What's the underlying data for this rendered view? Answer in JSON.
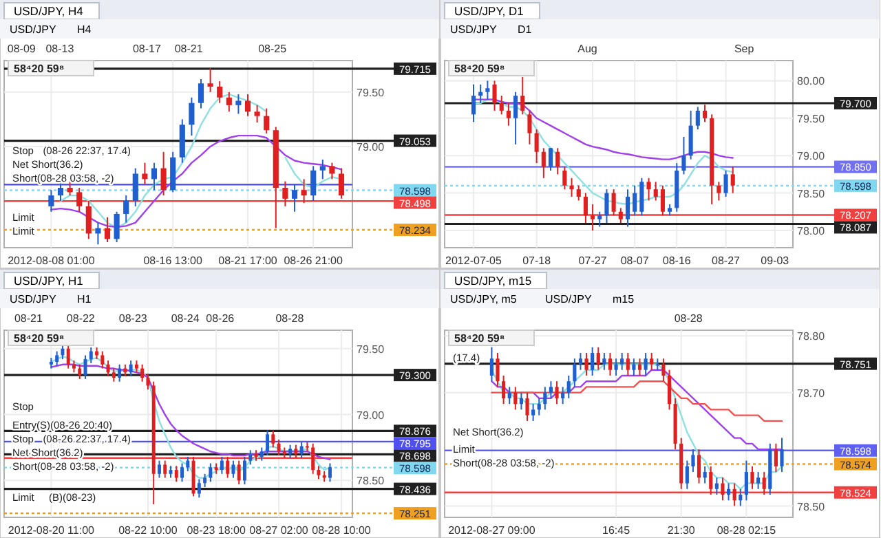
{
  "chart_data": [
    {
      "type": "candlestick",
      "title": "USD/JPY, H4",
      "subtitle": "58⁴20  59⁸",
      "colors": [
        "#1f5fd0",
        "#1f5fd0",
        "#e02020",
        "#e02020",
        "#e02020",
        "#1f5fd0",
        "#e02020",
        "#1f5fd0",
        "#1f5fd0",
        "#1f5fd0",
        "#e02020",
        "#1f5fd0",
        "#e02020",
        "#1f5fd0",
        "#1f5fd0",
        "#1f5fd0",
        "#1f5fd0",
        "#e02020",
        "#e02020",
        "#e02020",
        "#1f5fd0",
        "#e02020",
        "#e02020",
        "#e02020",
        "#e02020",
        "#e02020",
        "#1f5fd0",
        "#e02020",
        "#1f5fd0",
        "#1f5fd0",
        "#e02020",
        "#e02020"
      ],
      "grid": true,
      "categories": [
        "2012-08-08 01:00",
        null,
        null,
        null,
        null,
        null,
        null,
        null,
        null,
        null,
        null,
        null,
        null,
        "08-16 13:00",
        null,
        null,
        null,
        null,
        null,
        null,
        null,
        "08-21 17:00",
        null,
        null,
        null,
        null,
        null,
        null,
        "08-26 21:00",
        null,
        null,
        null
      ],
      "ohlc": [
        [
          78.45,
          78.6,
          78.4,
          78.55
        ],
        [
          78.55,
          78.68,
          78.5,
          78.62
        ],
        [
          78.62,
          78.7,
          78.55,
          78.58
        ],
        [
          78.58,
          78.62,
          78.4,
          78.45
        ],
        [
          78.45,
          78.5,
          78.15,
          78.2
        ],
        [
          78.2,
          78.3,
          78.1,
          78.25
        ],
        [
          78.25,
          78.35,
          78.12,
          78.15
        ],
        [
          78.15,
          78.4,
          78.12,
          78.38
        ],
        [
          78.38,
          78.55,
          78.3,
          78.5
        ],
        [
          78.5,
          78.8,
          78.45,
          78.75
        ],
        [
          78.75,
          78.85,
          78.65,
          78.7
        ],
        [
          78.7,
          78.85,
          78.6,
          78.8
        ],
        [
          78.8,
          78.95,
          78.55,
          78.6
        ],
        [
          78.6,
          78.95,
          78.58,
          78.9
        ],
        [
          78.9,
          79.25,
          78.85,
          79.2
        ],
        [
          79.2,
          79.45,
          79.1,
          79.4
        ],
        [
          79.4,
          79.62,
          79.35,
          79.58
        ],
        [
          79.58,
          79.72,
          79.5,
          79.55
        ],
        [
          79.55,
          79.6,
          79.4,
          79.45
        ],
        [
          79.45,
          79.5,
          79.32,
          79.38
        ],
        [
          79.38,
          79.48,
          79.3,
          79.42
        ],
        [
          79.42,
          79.48,
          79.28,
          79.32
        ],
        [
          79.32,
          79.38,
          79.22,
          79.28
        ],
        [
          79.28,
          79.35,
          79.12,
          79.15
        ],
        [
          79.15,
          79.18,
          78.25,
          78.62
        ],
        [
          78.62,
          78.68,
          78.45,
          78.52
        ],
        [
          78.52,
          78.65,
          78.4,
          78.6
        ],
        [
          78.6,
          78.7,
          78.48,
          78.55
        ],
        [
          78.55,
          78.82,
          78.5,
          78.78
        ],
        [
          78.78,
          78.88,
          78.7,
          78.82
        ],
        [
          78.82,
          78.85,
          78.7,
          78.75
        ],
        [
          78.75,
          78.8,
          78.52,
          78.55
        ]
      ],
      "series": [
        {
          "type": "line",
          "color": "#8fe0e0",
          "values": [
            null,
            78.5,
            78.55,
            78.55,
            78.5,
            78.4,
            78.3,
            78.25,
            78.3,
            78.4,
            78.55,
            78.65,
            78.7,
            78.72,
            78.85,
            79.0,
            79.2,
            79.35,
            79.45,
            79.48,
            79.45,
            79.42,
            79.38,
            79.32,
            null,
            78.9,
            78.75,
            78.65,
            78.62,
            78.68,
            78.72,
            78.7
          ]
        },
        {
          "type": "line",
          "color": "#a040e8",
          "values": [
            78.42,
            78.43,
            78.42,
            78.4,
            78.35,
            78.3,
            78.27,
            78.26,
            78.27,
            78.3,
            78.4,
            78.5,
            78.6,
            78.68,
            78.75,
            78.85,
            78.92,
            79.0,
            79.05,
            79.08,
            79.1,
            79.1,
            79.1,
            79.08,
            79.0,
            78.92,
            78.87,
            78.85,
            78.84,
            78.83,
            78.81,
            78.79
          ]
        }
      ],
      "ylim": [
        78.07,
        79.79
      ],
      "yticks": [
        {
          "value": 79.5,
          "label": "79.50"
        },
        {
          "value": 79.0,
          "label": "79.00"
        }
      ],
      "ref_lines": [
        {
          "axis": "y",
          "value": 79.715,
          "label": "79.715",
          "color": "#202020"
        },
        {
          "axis": "y",
          "value": 79.053,
          "label": "79.053",
          "color": "#202020"
        },
        {
          "axis": "y",
          "value": 78.65,
          "label": null,
          "color": "#5050f0"
        },
        {
          "axis": "y",
          "value": 78.598,
          "label": "78.598",
          "color": "#7fd8f0",
          "line_style": "dotted"
        },
        {
          "axis": "y",
          "value": 78.498,
          "label": "78.498",
          "color": "#f04040"
        },
        {
          "axis": "y",
          "value": 78.234,
          "label": "78.234",
          "color": "#f0a020",
          "line_style": "dotted"
        }
      ],
      "annotations": [
        "08-09",
        "08-13",
        "08-17",
        "08-21",
        "08-25",
        "USD/JPY",
        "H4",
        "Stop",
        "(08-26 22:37, 17.4)",
        "Net Short(36.2)",
        "Short(08-28 03:58, -2)",
        "Limit",
        "Limit"
      ]
    },
    {
      "type": "candlestick",
      "title": "USD/JPY, D1",
      "subtitle": "58⁴20  59⁸",
      "colors": [
        "#1f5fd0",
        "#1f5fd0",
        "#1f5fd0",
        "#e02020",
        "#e02020",
        "#e02020",
        "#1f5fd0",
        "#e02020",
        "#e02020",
        "#e02020",
        "#e02020",
        "#1f5fd0",
        "#e02020",
        "#e02020",
        "#e02020",
        "#e02020",
        "#e02020",
        "#e02020",
        "#1f5fd0",
        "#1f5fd0",
        "#e02020",
        "#e02020",
        "#1f5fd0",
        "#1f5fd0",
        "#1f5fd0",
        "#e02020",
        "#e02020",
        "#e02020",
        "#1f5fd0",
        "#1f5fd0",
        "#1f5fd0",
        "#1f5fd0",
        "#1f5fd0",
        "#e02020",
        "#e02020",
        "#e02020",
        "#1f5fd0",
        "#e02020",
        null,
        null,
        null,
        null,
        null,
        null,
        null
      ],
      "grid": true,
      "categories": [
        "2012-07-05",
        null,
        null,
        null,
        null,
        null,
        null,
        null,
        null,
        "07-18",
        null,
        null,
        null,
        null,
        null,
        null,
        null,
        "07-27",
        null,
        null,
        null,
        null,
        null,
        "08-07",
        null,
        null,
        null,
        null,
        null,
        "08-16",
        null,
        null,
        null,
        null,
        null,
        null,
        "08-27",
        null,
        null,
        null,
        null,
        null,
        null,
        "09-03",
        null
      ],
      "ohlc": [
        [
          79.55,
          79.95,
          79.45,
          79.8
        ],
        [
          79.8,
          79.95,
          79.7,
          79.85
        ],
        [
          79.85,
          80.0,
          79.75,
          79.9
        ],
        [
          79.95,
          80.0,
          79.6,
          79.7
        ],
        [
          79.7,
          79.8,
          79.55,
          79.6
        ],
        [
          79.6,
          79.7,
          79.4,
          79.5
        ],
        [
          79.5,
          79.85,
          79.15,
          79.8
        ],
        [
          79.8,
          80.05,
          79.55,
          79.6
        ],
        [
          79.55,
          79.6,
          79.15,
          79.3
        ],
        [
          79.3,
          79.35,
          78.9,
          79.05
        ],
        [
          79.05,
          79.1,
          78.7,
          78.85
        ],
        [
          78.85,
          79.1,
          78.8,
          79.1
        ],
        [
          79.05,
          79.1,
          78.75,
          78.85
        ],
        [
          78.8,
          78.85,
          78.55,
          78.6
        ],
        [
          78.6,
          78.7,
          78.45,
          78.55
        ],
        [
          78.55,
          78.6,
          78.4,
          78.45
        ],
        [
          78.45,
          78.5,
          78.1,
          78.2
        ],
        [
          78.2,
          78.35,
          78.0,
          78.15
        ],
        [
          78.15,
          78.25,
          78.05,
          78.2
        ],
        [
          78.2,
          78.55,
          78.1,
          78.5
        ],
        [
          78.5,
          78.55,
          78.2,
          78.25
        ],
        [
          78.25,
          78.3,
          78.1,
          78.15
        ],
        [
          78.15,
          78.55,
          78.05,
          78.45
        ],
        [
          78.25,
          78.6,
          78.2,
          78.5
        ],
        [
          78.25,
          78.7,
          78.2,
          78.65
        ],
        [
          78.65,
          78.7,
          78.4,
          78.55
        ],
        [
          78.55,
          78.65,
          78.4,
          78.45
        ],
        [
          78.55,
          78.6,
          78.2,
          78.25
        ],
        [
          78.25,
          78.35,
          78.2,
          78.3
        ],
        [
          78.3,
          78.9,
          78.25,
          78.8
        ],
        [
          78.8,
          79.25,
          78.75,
          79.0
        ],
        [
          79.0,
          79.6,
          78.95,
          79.4
        ],
        [
          79.4,
          79.65,
          79.35,
          79.6
        ],
        [
          79.6,
          79.68,
          79.45,
          79.5
        ],
        [
          79.5,
          79.55,
          78.35,
          78.6
        ],
        [
          78.6,
          78.65,
          78.4,
          78.5
        ],
        [
          78.5,
          78.8,
          78.45,
          78.75
        ],
        [
          78.75,
          78.85,
          78.5,
          78.6
        ],
        null,
        null,
        null,
        null,
        null,
        null,
        null
      ],
      "series": [
        {
          "type": "line",
          "color": "#8fe0e0",
          "values": [
            79.7,
            79.7,
            79.75,
            79.75,
            79.7,
            79.65,
            79.65,
            79.6,
            79.5,
            79.35,
            79.2,
            79.1,
            79.0,
            78.9,
            78.8,
            78.7,
            78.6,
            78.5,
            78.45,
            78.4,
            78.38,
            78.36,
            78.35,
            78.38,
            78.4,
            78.42,
            78.45,
            78.45,
            78.45,
            78.5,
            78.6,
            78.75,
            78.9,
            79.0,
            78.95,
            78.85,
            78.8,
            78.78,
            null,
            null,
            null,
            null,
            null,
            null,
            null
          ]
        },
        {
          "type": "line",
          "color": "#a040e8",
          "values": [
            79.75,
            79.75,
            79.75,
            79.75,
            79.72,
            79.7,
            79.7,
            79.68,
            79.6,
            79.5,
            79.45,
            79.4,
            79.35,
            79.3,
            79.25,
            79.2,
            79.15,
            79.12,
            79.1,
            79.08,
            79.05,
            79.03,
            79.02,
            79.0,
            78.98,
            78.97,
            78.96,
            78.95,
            78.95,
            78.97,
            79.0,
            79.03,
            79.05,
            79.05,
            79.03,
            79.0,
            78.98,
            78.97,
            null,
            null,
            null,
            null,
            null,
            null,
            null
          ]
        }
      ],
      "ylim": [
        77.77,
        80.27
      ],
      "yticks": [
        {
          "value": 80.0,
          "label": "80.00"
        },
        {
          "value": 79.5,
          "label": "79.50"
        },
        {
          "value": 79.0,
          "label": "79.00"
        },
        {
          "value": 78.5,
          "label": "78.50"
        },
        {
          "value": 78.0,
          "label": "78.00"
        }
      ],
      "ref_lines": [
        {
          "axis": "y",
          "value": 79.7,
          "label": "79.700",
          "color": "#202020"
        },
        {
          "axis": "y",
          "value": 78.85,
          "label": "78.850",
          "color": "#7070f0"
        },
        {
          "axis": "y",
          "value": 78.598,
          "label": "78.598",
          "color": "#7fd8f0",
          "line_style": "dotted"
        },
        {
          "axis": "y",
          "value": 78.207,
          "label": "78.207",
          "color": "#f04040"
        },
        {
          "axis": "y",
          "value": 78.087,
          "label": "78.087",
          "color": "#202020"
        }
      ],
      "annotations": [
        "Aug",
        "Sep",
        "USD/JPY",
        "D1"
      ]
    },
    {
      "type": "candlestick",
      "title": "USD/JPY, H1",
      "subtitle": "58⁴20  59⁸",
      "colors": [
        "#1f5fd0",
        "#1f5fd0",
        "#1f5fd0",
        "#e02020",
        "#e02020",
        "#e02020",
        "#1f5fd0",
        "#1f5fd0",
        "#e02020",
        "#e02020",
        "#e02020",
        "#e02020",
        "#1f5fd0",
        "#e02020",
        "#1f5fd0",
        "#e02020",
        "#e02020",
        "#e02020",
        "#e02020",
        "#1f5fd0",
        "#e02020",
        "#1f5fd0",
        "#e02020",
        "#1f5fd0",
        "#1f5fd0",
        "#e02020",
        "#1f5fd0",
        "#1f5fd0",
        "#1f5fd0",
        "#e02020",
        "#1f5fd0",
        "#e02020",
        "#1f5fd0",
        "#e02020",
        "#1f5fd0",
        "#1f5fd0",
        "#e02020",
        "#1f5fd0",
        "#1f5fd0",
        "#e02020",
        "#e02020",
        "#e02020",
        "#1f5fd0",
        "#e02020",
        "#1f5fd0",
        "#e02020",
        "#e02020",
        "#e02020",
        "#e02020",
        "#1f5fd0",
        null,
        null
      ],
      "grid": true,
      "categories": [
        "2012-08-20 11:00",
        null,
        null,
        null,
        null,
        null,
        null,
        null,
        null,
        null,
        null,
        null,
        null,
        null,
        null,
        null,
        null,
        "08-22 10:00",
        null,
        null,
        null,
        null,
        null,
        null,
        null,
        null,
        null,
        null,
        null,
        "08-23 18:00",
        null,
        null,
        null,
        null,
        null,
        null,
        null,
        null,
        null,
        null,
        "08-27 02:00",
        null,
        null,
        null,
        null,
        null,
        null,
        null,
        null,
        null,
        null,
        "08-28 10:00"
      ],
      "ohlc": [
        [
          79.38,
          79.43,
          79.35,
          79.4
        ],
        [
          79.4,
          79.48,
          79.37,
          79.45
        ],
        [
          79.45,
          79.53,
          79.42,
          79.5
        ],
        [
          79.5,
          79.53,
          79.35,
          79.38
        ],
        [
          79.38,
          79.41,
          79.32,
          79.35
        ],
        [
          79.35,
          79.38,
          79.27,
          79.3
        ],
        [
          79.3,
          79.45,
          79.27,
          79.42
        ],
        [
          79.42,
          79.51,
          79.39,
          79.48
        ],
        [
          79.48,
          79.51,
          79.42,
          79.45
        ],
        [
          79.45,
          79.48,
          79.35,
          79.38
        ],
        [
          79.38,
          79.41,
          79.29,
          79.32
        ],
        [
          79.32,
          79.35,
          79.25,
          79.28
        ],
        [
          79.28,
          79.38,
          79.25,
          79.35
        ],
        [
          79.35,
          79.38,
          79.29,
          79.32
        ],
        [
          79.32,
          79.41,
          79.29,
          79.38
        ],
        [
          79.38,
          79.41,
          79.32,
          79.35
        ],
        [
          79.35,
          79.38,
          79.25,
          79.28
        ],
        [
          79.28,
          79.31,
          79.19,
          79.22
        ],
        [
          79.22,
          79.25,
          78.32,
          78.55
        ],
        [
          78.55,
          78.65,
          78.52,
          78.62
        ],
        [
          78.62,
          78.65,
          78.52,
          78.55
        ],
        [
          78.55,
          78.61,
          78.52,
          78.58
        ],
        [
          78.58,
          78.61,
          78.49,
          78.52
        ],
        [
          78.52,
          78.63,
          78.49,
          78.6
        ],
        [
          78.6,
          78.68,
          78.57,
          78.65
        ],
        [
          78.65,
          78.68,
          78.38,
          78.4
        ],
        [
          78.4,
          78.51,
          78.37,
          78.48
        ],
        [
          78.48,
          78.55,
          78.45,
          78.52
        ],
        [
          78.52,
          78.63,
          78.49,
          78.6
        ],
        [
          78.6,
          78.63,
          78.55,
          78.58
        ],
        [
          78.58,
          78.68,
          78.55,
          78.65
        ],
        [
          78.65,
          78.68,
          78.52,
          78.55
        ],
        [
          78.55,
          78.65,
          78.52,
          78.62
        ],
        [
          78.62,
          78.65,
          78.47,
          78.5
        ],
        [
          78.5,
          78.68,
          78.47,
          78.65
        ],
        [
          78.65,
          78.73,
          78.62,
          78.7
        ],
        [
          78.7,
          78.73,
          78.65,
          78.68
        ],
        [
          78.68,
          78.75,
          78.65,
          78.72
        ],
        [
          78.72,
          78.88,
          78.69,
          78.85
        ],
        [
          78.85,
          78.88,
          78.75,
          78.78
        ],
        [
          78.78,
          78.81,
          78.69,
          78.72
        ],
        [
          78.72,
          78.75,
          78.67,
          78.7
        ],
        [
          78.7,
          78.77,
          78.67,
          78.74
        ],
        [
          78.74,
          78.77,
          78.67,
          78.7
        ],
        [
          78.7,
          78.79,
          78.67,
          78.76
        ],
        [
          78.76,
          78.79,
          78.72,
          78.75
        ],
        [
          78.75,
          78.78,
          78.55,
          78.58
        ],
        [
          78.58,
          78.61,
          78.51,
          78.54
        ],
        [
          78.54,
          78.57,
          78.49,
          78.52
        ],
        [
          78.52,
          78.63,
          78.49,
          78.6
        ],
        null,
        null
      ],
      "series": [
        {
          "type": "line",
          "color": "#8fe0e0",
          "values": [
            79.4,
            79.42,
            79.44,
            79.43,
            79.4,
            79.38,
            79.4,
            79.42,
            79.43,
            79.4,
            79.36,
            79.33,
            79.33,
            79.33,
            79.34,
            79.34,
            79.32,
            79.28,
            79.1,
            78.95,
            78.85,
            78.75,
            78.68,
            78.64,
            78.62,
            78.55,
            78.52,
            78.52,
            78.55,
            78.57,
            78.6,
            78.58,
            78.6,
            78.57,
            78.6,
            78.65,
            78.67,
            78.69,
            78.75,
            78.76,
            78.74,
            78.72,
            78.73,
            78.72,
            78.73,
            78.74,
            78.68,
            78.62,
            78.58,
            78.6,
            null,
            null
          ]
        },
        {
          "type": "line",
          "color": "#a040e8",
          "values": [
            79.36,
            79.37,
            79.38,
            79.38,
            79.38,
            79.37,
            79.37,
            79.37,
            79.37,
            79.36,
            79.35,
            79.35,
            79.34,
            79.34,
            79.33,
            79.32,
            79.31,
            79.28,
            79.18,
            79.08,
            79.0,
            78.93,
            78.88,
            78.84,
            78.81,
            78.78,
            78.76,
            78.74,
            78.72,
            78.71,
            78.7,
            78.7,
            78.69,
            78.69,
            78.69,
            78.7,
            78.7,
            78.71,
            78.72,
            78.72,
            78.72,
            78.72,
            78.72,
            78.72,
            78.72,
            78.72,
            78.7,
            78.68,
            78.67,
            78.66,
            null,
            null
          ]
        }
      ],
      "ylim": [
        78.22,
        79.64
      ],
      "yticks": [
        {
          "value": 79.5,
          "label": "79.50"
        },
        {
          "value": 79.0,
          "label": "79.00"
        },
        {
          "value": 78.5,
          "label": "78.50"
        }
      ],
      "ref_lines": [
        {
          "axis": "y",
          "value": 79.3,
          "label": "79.300",
          "color": "#202020"
        },
        {
          "axis": "y",
          "value": 78.876,
          "label": "78.876",
          "color": "#202020"
        },
        {
          "axis": "y",
          "value": 78.795,
          "label": "78.795",
          "color": "#5050f0"
        },
        {
          "axis": "y",
          "value": 78.698,
          "label": "78.698",
          "color": "#202020"
        },
        {
          "axis": "y",
          "value": 78.67,
          "label": null,
          "color": "#f04040"
        },
        {
          "axis": "y",
          "value": 78.598,
          "label": "78.598",
          "color": "#7fd8f0",
          "line_style": "dotted"
        },
        {
          "axis": "y",
          "value": 78.436,
          "label": "78.436",
          "color": "#202020"
        },
        {
          "axis": "y",
          "value": 78.251,
          "label": "78.251",
          "color": "#f0a020",
          "line_style": "dotted"
        }
      ],
      "annotations": [
        "08-21",
        "08-22",
        "08-23",
        "08-24",
        "08-26",
        "08-28",
        "USD/JPY",
        "H1",
        "Stop",
        "Entry(S)(08-26 20:40)",
        "Stop",
        "(08-26 22:37, 17.4)",
        "Net Short(36.2)",
        "Short(08-28 03:58, -2)",
        "Limit",
        "(B)(08-23)"
      ]
    },
    {
      "type": "candlestick",
      "title": "USD/JPY, m15",
      "subtitle": "58⁴20  59⁸",
      "colors": [
        "#1f5fd0",
        "#e02020",
        "#e02020",
        "#1f5fd0",
        "#e02020",
        "#1f5fd0",
        "#e02020",
        "#1f5fd0",
        "#1f5fd0",
        "#1f5fd0",
        "#1f5fd0",
        "#e02020",
        "#1f5fd0",
        "#1f5fd0",
        "#1f5fd0",
        "#1f5fd0",
        "#e02020",
        "#1f5fd0",
        "#e02020",
        "#1f5fd0",
        "#e02020",
        "#1f5fd0",
        "#1f5fd0",
        "#e02020",
        "#1f5fd0",
        "#e02020",
        "#1f5fd0",
        "#e02020",
        "#1f5fd0",
        "#e02020",
        "#e02020",
        "#e02020",
        "#e02020",
        "#1f5fd0",
        "#1f5fd0",
        "#e02020",
        "#1f5fd0",
        "#e02020",
        "#1f5fd0",
        "#e02020",
        "#1f5fd0",
        "#e02020",
        "#1f5fd0",
        "#1f5fd0",
        "#e02020",
        "#1f5fd0",
        "#e02020",
        "#1f5fd0",
        "#e02020",
        "#1f5fd0"
      ],
      "grid": true,
      "categories": [
        "2012-08-27 09:00",
        null,
        null,
        null,
        null,
        null,
        null,
        null,
        null,
        null,
        null,
        null,
        null,
        null,
        null,
        null,
        null,
        null,
        null,
        null,
        null,
        "16:45",
        null,
        null,
        null,
        null,
        null,
        null,
        null,
        null,
        null,
        null,
        "21:30",
        null,
        null,
        null,
        null,
        null,
        null,
        null,
        null,
        null,
        null,
        "08-28 02:15",
        null,
        null,
        null,
        null,
        null,
        null
      ],
      "ohlc": [
        [
          78.73,
          78.78,
          78.72,
          78.76
        ],
        [
          78.76,
          78.77,
          78.71,
          78.72
        ],
        [
          78.72,
          78.73,
          78.68,
          78.69
        ],
        [
          78.69,
          78.71,
          78.68,
          78.7
        ],
        [
          78.7,
          78.71,
          78.67,
          78.68
        ],
        [
          78.68,
          78.7,
          78.67,
          78.69
        ],
        [
          78.69,
          78.7,
          78.65,
          78.66
        ],
        [
          78.66,
          78.68,
          78.65,
          78.67
        ],
        [
          78.67,
          78.69,
          78.66,
          78.68
        ],
        [
          78.68,
          78.71,
          78.67,
          78.7
        ],
        [
          78.7,
          78.72,
          78.69,
          78.71
        ],
        [
          78.71,
          78.72,
          78.68,
          78.69
        ],
        [
          78.69,
          78.71,
          78.68,
          78.7
        ],
        [
          78.7,
          78.73,
          78.69,
          78.72
        ],
        [
          78.72,
          78.76,
          78.71,
          78.75
        ],
        [
          78.75,
          78.77,
          78.74,
          78.76
        ],
        [
          78.76,
          78.77,
          78.73,
          78.74
        ],
        [
          78.74,
          78.78,
          78.73,
          78.77
        ],
        [
          78.77,
          78.78,
          78.74,
          78.75
        ],
        [
          78.75,
          78.77,
          78.74,
          78.76
        ],
        [
          78.76,
          78.77,
          78.73,
          78.74
        ],
        [
          78.74,
          78.76,
          78.73,
          78.75
        ],
        [
          78.75,
          78.77,
          78.74,
          78.76
        ],
        [
          78.76,
          78.77,
          78.73,
          78.74
        ],
        [
          78.74,
          78.76,
          78.73,
          78.75
        ],
        [
          78.75,
          78.76,
          78.73,
          78.74
        ],
        [
          78.74,
          78.77,
          78.73,
          78.76
        ],
        [
          78.76,
          78.77,
          78.74,
          78.75
        ],
        [
          78.75,
          78.76,
          78.74,
          78.75
        ],
        [
          78.75,
          78.76,
          78.72,
          78.73
        ],
        [
          78.73,
          78.74,
          78.67,
          78.68
        ],
        [
          78.68,
          78.69,
          78.6,
          78.61
        ],
        [
          78.61,
          78.62,
          78.53,
          78.54
        ],
        [
          78.54,
          78.58,
          78.53,
          78.57
        ],
        [
          78.57,
          78.6,
          78.56,
          78.59
        ],
        [
          78.59,
          78.6,
          78.54,
          78.55
        ],
        [
          78.55,
          78.57,
          78.54,
          78.56
        ],
        [
          78.56,
          78.57,
          78.52,
          78.53
        ],
        [
          78.53,
          78.55,
          78.52,
          78.54
        ],
        [
          78.54,
          78.55,
          78.51,
          78.52
        ],
        [
          78.52,
          78.54,
          78.51,
          78.53
        ],
        [
          78.53,
          78.54,
          78.5,
          78.51
        ],
        [
          78.51,
          78.53,
          78.5,
          78.52
        ],
        [
          78.52,
          78.58,
          78.51,
          78.56
        ],
        [
          78.56,
          78.57,
          78.53,
          78.54
        ],
        [
          78.54,
          78.56,
          78.53,
          78.55
        ],
        [
          78.55,
          78.56,
          78.52,
          78.53
        ],
        [
          78.53,
          78.61,
          78.52,
          78.6
        ],
        [
          78.6,
          78.61,
          78.56,
          78.57
        ],
        [
          78.57,
          78.62,
          78.56,
          78.6
        ]
      ],
      "series": [
        {
          "type": "line",
          "color": "#8fe0e0",
          "values": [
            78.74,
            78.72,
            78.7,
            78.7,
            78.69,
            78.69,
            78.68,
            78.68,
            78.68,
            78.69,
            78.7,
            78.7,
            78.7,
            78.71,
            78.72,
            78.73,
            78.74,
            78.74,
            78.74,
            78.75,
            78.75,
            78.75,
            78.75,
            78.75,
            78.75,
            78.75,
            78.75,
            78.75,
            78.75,
            78.74,
            78.72,
            78.69,
            78.66,
            78.63,
            78.61,
            78.59,
            78.58,
            78.56,
            78.55,
            78.55,
            78.54,
            78.54,
            78.53,
            78.54,
            78.54,
            78.54,
            78.54,
            78.56,
            78.56,
            78.57
          ]
        },
        {
          "type": "line",
          "color": "#a040e8",
          "values": [
            78.72,
            78.71,
            78.71,
            78.7,
            78.7,
            78.7,
            78.7,
            78.7,
            78.69,
            78.69,
            78.69,
            78.7,
            78.7,
            78.7,
            78.71,
            78.71,
            78.72,
            78.72,
            78.72,
            78.72,
            78.72,
            78.72,
            78.73,
            78.73,
            78.73,
            78.73,
            78.73,
            78.74,
            78.74,
            78.74,
            78.73,
            78.72,
            78.71,
            78.7,
            78.69,
            78.68,
            78.67,
            78.66,
            78.65,
            78.64,
            78.63,
            78.62,
            78.62,
            78.61,
            78.61,
            78.6,
            78.6,
            78.6,
            78.6,
            78.6
          ]
        },
        {
          "type": "line",
          "color": "#f05050",
          "values": [
            78.7,
            78.7,
            78.7,
            78.7,
            78.7,
            78.7,
            78.7,
            78.7,
            78.7,
            78.7,
            78.7,
            78.7,
            78.7,
            78.7,
            78.7,
            78.7,
            78.71,
            78.71,
            78.71,
            78.71,
            78.71,
            78.71,
            78.71,
            78.71,
            78.71,
            78.72,
            78.72,
            78.72,
            78.72,
            78.72,
            78.71,
            78.7,
            78.69,
            78.69,
            78.68,
            78.68,
            78.68,
            78.67,
            78.67,
            78.67,
            78.67,
            78.66,
            78.66,
            78.66,
            78.66,
            78.66,
            78.65,
            78.65,
            78.65,
            78.65
          ]
        }
      ],
      "ylim": [
        78.48,
        78.81
      ],
      "yticks": [
        {
          "value": 78.8,
          "label": "78.80"
        },
        {
          "value": 78.7,
          "label": "78.70"
        },
        {
          "value": 78.5,
          "label": "78.50"
        }
      ],
      "ref_lines": [
        {
          "axis": "y",
          "value": 78.751,
          "label": "78.751",
          "color": "#202020"
        },
        {
          "axis": "y",
          "value": 78.598,
          "label": "78.598",
          "color": "#6060f0"
        },
        {
          "axis": "y",
          "value": 78.574,
          "label": "78.574",
          "color": "#f0a020",
          "line_style": "dotted"
        },
        {
          "axis": "y",
          "value": 78.524,
          "label": "78.524",
          "color": "#f04040"
        }
      ],
      "annotations": [
        "08-28",
        "USD/JPY, m5",
        "USD/JPY",
        "m15",
        "(17.4)",
        "Net Short(36.2)",
        "Limit",
        "Short(08-28 03:58, -2)"
      ]
    }
  ]
}
